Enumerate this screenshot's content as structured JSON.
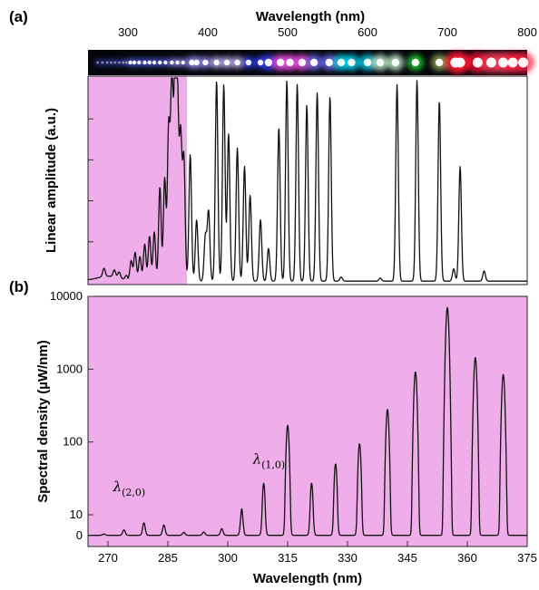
{
  "panel_labels": [
    "(a)",
    "(b)"
  ],
  "colors": {
    "uv_shade": "#efaeea",
    "trace": "#111111",
    "strip_background": "#05060b",
    "spot_colors_by_wavelength": [
      {
        "nm": 260,
        "color": "#3446c8"
      },
      {
        "nm": 320,
        "color": "#4758d8"
      },
      {
        "nm": 380,
        "color": "#8f8cf2"
      },
      {
        "nm": 420,
        "color": "#c8b8ff"
      },
      {
        "nm": 470,
        "color": "#3340ff"
      },
      {
        "nm": 500,
        "color": "#ff50f0"
      },
      {
        "nm": 540,
        "color": "#7070ff"
      },
      {
        "nm": 580,
        "color": "#00ddff"
      },
      {
        "nm": 620,
        "color": "#d0ffd8"
      },
      {
        "nm": 650,
        "color": "#22dd33"
      },
      {
        "nm": 680,
        "color": "#a0b060"
      },
      {
        "nm": 720,
        "color": "#ff1530"
      },
      {
        "nm": 760,
        "color": "#ff3a5a"
      },
      {
        "nm": 800,
        "color": "#ff2040"
      }
    ]
  },
  "chart_data": [
    {
      "panel": "(a)",
      "type": "line",
      "xlabel": "Wavelength (nm)",
      "ylabel": "Linear amplitude (a.u.)",
      "xlim": [
        250,
        800
      ],
      "xticks": [
        300,
        400,
        500,
        600,
        700,
        800
      ],
      "ylim": [
        0,
        1
      ],
      "grid": false,
      "shaded_region_x": [
        250,
        374
      ],
      "spectral_strip_spots_nm": [
        262,
        268,
        274,
        279,
        284,
        289,
        294,
        298,
        303,
        308,
        314,
        321,
        327,
        333,
        340,
        347,
        355,
        362,
        369,
        380,
        386,
        397,
        411,
        424,
        437,
        451,
        466,
        476,
        491,
        503,
        518,
        533,
        552,
        567,
        580,
        600,
        616,
        635,
        660,
        690,
        710,
        716,
        738,
        755,
        770,
        782,
        795
      ],
      "peaks": [
        {
          "x": 270,
          "y": 0.04
        },
        {
          "x": 283,
          "y": 0.035
        },
        {
          "x": 289,
          "y": 0.03
        },
        {
          "x": 298,
          "y": 0.02
        },
        {
          "x": 304,
          "y": 0.1
        },
        {
          "x": 309,
          "y": 0.14
        },
        {
          "x": 315,
          "y": 0.12
        },
        {
          "x": 321,
          "y": 0.18
        },
        {
          "x": 327,
          "y": 0.22
        },
        {
          "x": 333,
          "y": 0.24
        },
        {
          "x": 340,
          "y": 0.46
        },
        {
          "x": 346,
          "y": 0.5
        },
        {
          "x": 351,
          "y": 0.75
        },
        {
          "x": 355,
          "y": 0.98
        },
        {
          "x": 359,
          "y": 0.96
        },
        {
          "x": 362,
          "y": 0.85
        },
        {
          "x": 366,
          "y": 0.7
        },
        {
          "x": 370,
          "y": 0.6
        },
        {
          "x": 378,
          "y": 0.62
        },
        {
          "x": 386,
          "y": 0.3
        },
        {
          "x": 397,
          "y": 0.22
        },
        {
          "x": 401,
          "y": 0.34
        },
        {
          "x": 411,
          "y": 0.98
        },
        {
          "x": 420,
          "y": 0.96
        },
        {
          "x": 426,
          "y": 0.72
        },
        {
          "x": 437,
          "y": 0.65
        },
        {
          "x": 446,
          "y": 0.56
        },
        {
          "x": 453,
          "y": 0.42
        },
        {
          "x": 466,
          "y": 0.3
        },
        {
          "x": 476,
          "y": 0.16
        },
        {
          "x": 489,
          "y": 0.75
        },
        {
          "x": 499,
          "y": 0.98
        },
        {
          "x": 512,
          "y": 0.96
        },
        {
          "x": 524,
          "y": 0.86
        },
        {
          "x": 537,
          "y": 0.92
        },
        {
          "x": 553,
          "y": 0.9
        },
        {
          "x": 567,
          "y": 0.02
        },
        {
          "x": 616,
          "y": 0.015
        },
        {
          "x": 637,
          "y": 0.96
        },
        {
          "x": 662,
          "y": 0.98
        },
        {
          "x": 690,
          "y": 0.88
        },
        {
          "x": 708,
          "y": 0.06
        },
        {
          "x": 716,
          "y": 0.56
        },
        {
          "x": 746,
          "y": 0.05
        }
      ]
    },
    {
      "panel": "(b)",
      "type": "line",
      "xlabel": "Wavelength (nm)",
      "ylabel": "Spectral density (µW/nm)",
      "xlim": [
        265,
        375
      ],
      "xticks": [
        270,
        285,
        300,
        315,
        330,
        345,
        360,
        375
      ],
      "yticks": [
        0,
        10,
        100,
        1000,
        10000
      ],
      "ylim": [
        0,
        10000
      ],
      "grid": false,
      "background_fill": "shaded",
      "annotations": [
        {
          "label": "λ(2,0)",
          "x": 274,
          "y": 20
        },
        {
          "label": "λ(1,0)",
          "x": 309,
          "y": 48
        }
      ],
      "peaks": [
        {
          "x": 269,
          "y": 0.6
        },
        {
          "x": 274,
          "y": 2.6
        },
        {
          "x": 279,
          "y": 6
        },
        {
          "x": 284,
          "y": 5
        },
        {
          "x": 289,
          "y": 1.4
        },
        {
          "x": 294,
          "y": 1.6
        },
        {
          "x": 298.5,
          "y": 3.2
        },
        {
          "x": 303.5,
          "y": 12
        },
        {
          "x": 309,
          "y": 27
        },
        {
          "x": 315,
          "y": 170
        },
        {
          "x": 321,
          "y": 27
        },
        {
          "x": 327,
          "y": 50
        },
        {
          "x": 333,
          "y": 95
        },
        {
          "x": 340,
          "y": 280
        },
        {
          "x": 347,
          "y": 920
        },
        {
          "x": 355,
          "y": 7000
        },
        {
          "x": 362,
          "y": 1450
        },
        {
          "x": 369,
          "y": 850
        }
      ]
    }
  ]
}
